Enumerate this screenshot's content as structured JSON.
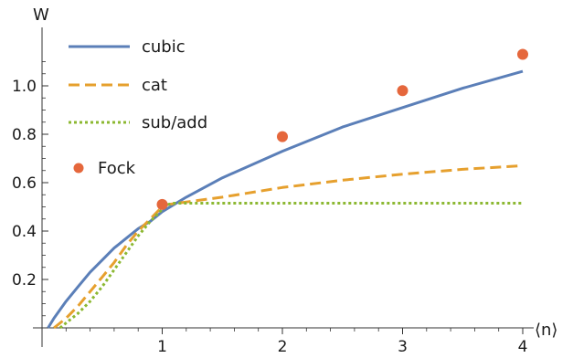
{
  "chart_data": {
    "type": "line",
    "title": "",
    "xlabel": "⟨n⟩",
    "ylabel": "W",
    "xlim": [
      0,
      4
    ],
    "ylim": [
      0,
      1.15
    ],
    "x_ticks": [
      1,
      2,
      3,
      4
    ],
    "x_tick_labels": [
      "1",
      "2",
      "3",
      "4"
    ],
    "y_ticks": [
      0.2,
      0.4,
      0.6,
      0.8,
      1.0
    ],
    "y_tick_labels": [
      "0.2",
      "0.4",
      "0.6",
      "0.8",
      "1.0"
    ],
    "grid": false,
    "legend_position": "top-left",
    "series": [
      {
        "name": "cubic",
        "style": "solid",
        "color": "#5b7fb8",
        "x": [
          0.05,
          0.1,
          0.2,
          0.3,
          0.4,
          0.5,
          0.6,
          0.7,
          0.8,
          0.9,
          1.0,
          1.2,
          1.5,
          2.0,
          2.5,
          3.0,
          3.5,
          4.0
        ],
        "y": [
          0.0,
          0.04,
          0.11,
          0.17,
          0.23,
          0.28,
          0.33,
          0.37,
          0.41,
          0.44,
          0.48,
          0.54,
          0.62,
          0.73,
          0.83,
          0.91,
          0.99,
          1.06
        ]
      },
      {
        "name": "cat",
        "style": "dashed",
        "color": "#e6a02e",
        "x": [
          0.1,
          0.2,
          0.3,
          0.4,
          0.5,
          0.6,
          0.7,
          0.8,
          0.9,
          1.0,
          1.05,
          1.2,
          1.5,
          2.0,
          2.5,
          3.0,
          3.5,
          4.0
        ],
        "y": [
          0.0,
          0.04,
          0.09,
          0.15,
          0.21,
          0.27,
          0.34,
          0.4,
          0.45,
          0.5,
          0.51,
          0.52,
          0.54,
          0.58,
          0.61,
          0.635,
          0.655,
          0.67
        ]
      },
      {
        "name": "sub/add",
        "style": "dotted",
        "color": "#8cb832",
        "x": [
          0.15,
          0.3,
          0.4,
          0.5,
          0.6,
          0.7,
          0.8,
          0.9,
          1.0,
          1.05,
          1.1,
          2.0,
          3.0,
          4.0
        ],
        "y": [
          0.0,
          0.06,
          0.11,
          0.17,
          0.24,
          0.31,
          0.38,
          0.44,
          0.49,
          0.51,
          0.515,
          0.515,
          0.515,
          0.515
        ]
      },
      {
        "name": "Fock",
        "style": "points",
        "color": "#e5673c",
        "x": [
          1,
          2,
          3,
          4
        ],
        "y": [
          0.51,
          0.79,
          0.98,
          1.13
        ]
      }
    ]
  }
}
